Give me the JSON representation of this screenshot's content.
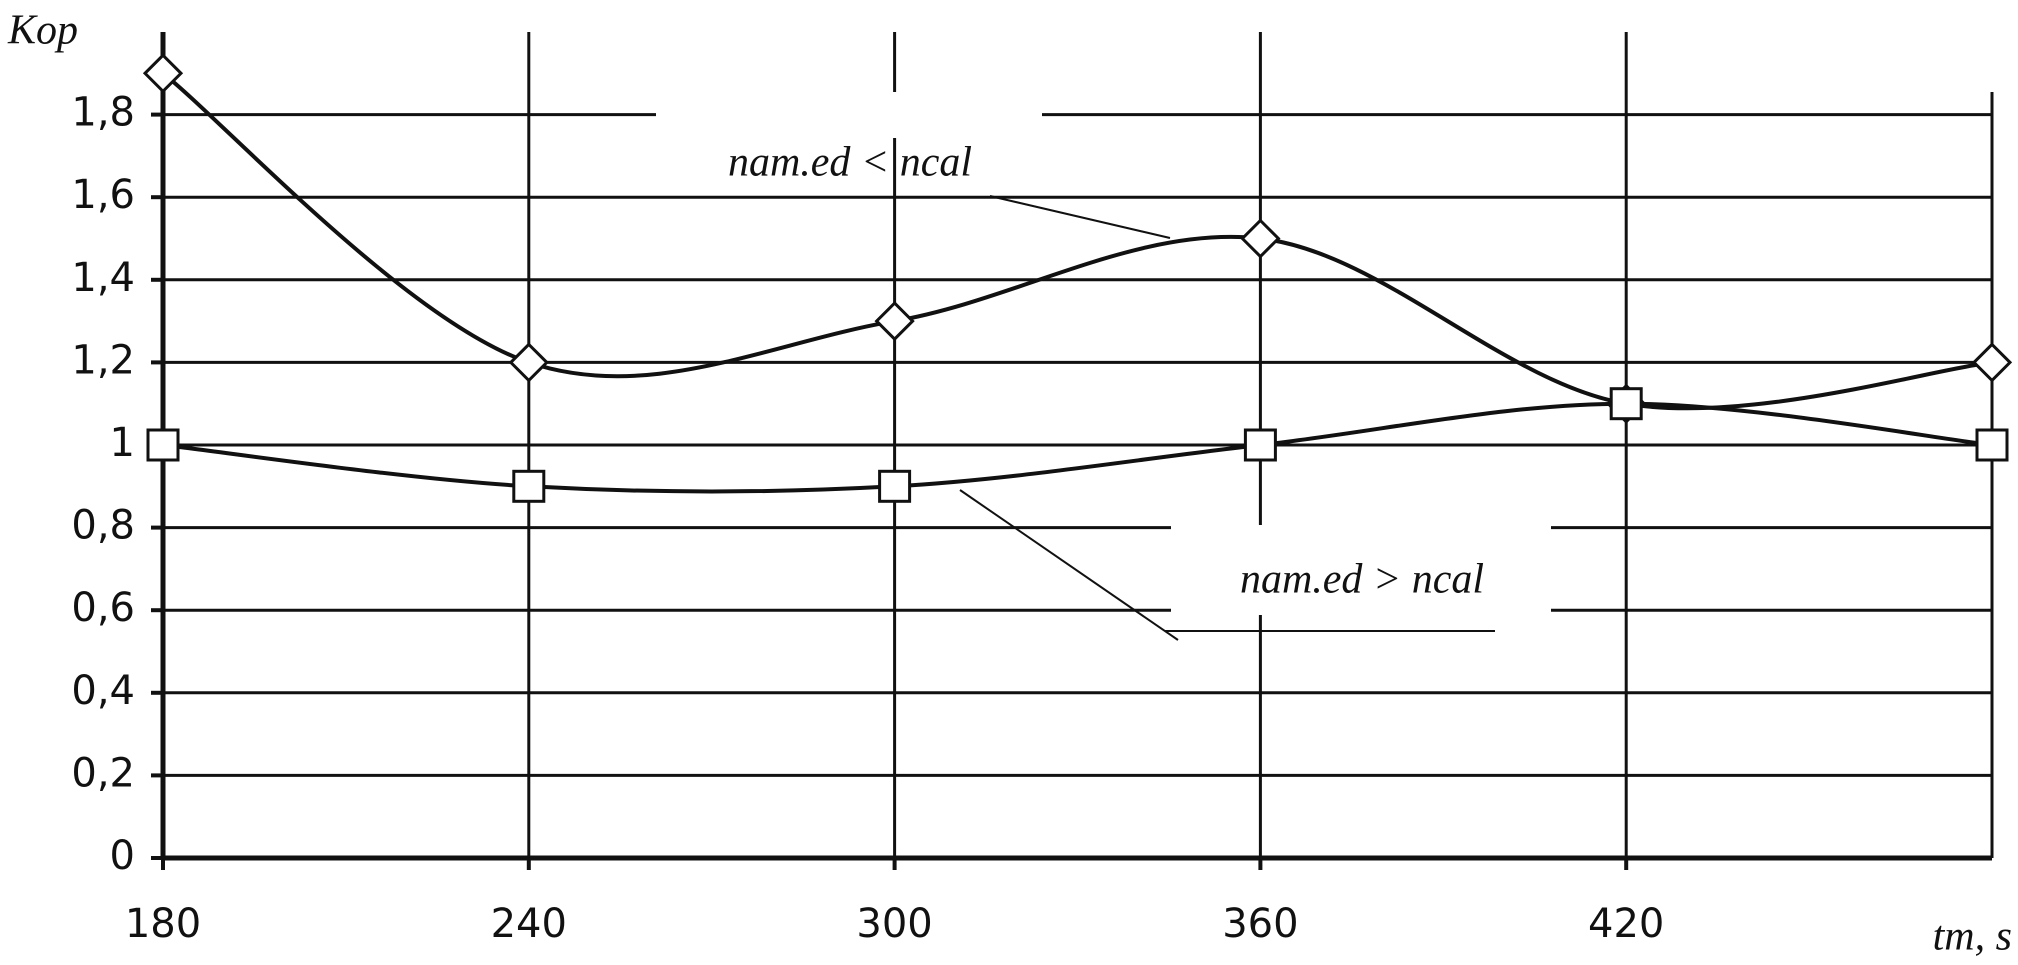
{
  "chart_data": {
    "type": "line",
    "y_label": "Kop",
    "x_label": "tm, s",
    "x": [
      180,
      240,
      300,
      360,
      420,
      480
    ],
    "series": [
      {
        "name": "nam.ed < ncal",
        "marker": "diamond",
        "color": "#111111",
        "values": [
          1.9,
          1.2,
          1.3,
          1.5,
          1.1,
          1.2
        ]
      },
      {
        "name": "nam.ed > ncal",
        "marker": "square",
        "color": "#111111",
        "values": [
          1.0,
          0.9,
          0.9,
          1.0,
          1.1,
          1.0
        ]
      }
    ],
    "xlim": [
      180,
      480
    ],
    "xticks": [
      180,
      240,
      300,
      360,
      420
    ],
    "ylim": [
      0,
      2
    ],
    "yticks": [
      0,
      {
        "value": 0.2,
        "label": "0,2"
      },
      {
        "value": 0.4,
        "label": "0,4"
      },
      {
        "value": 0.6,
        "label": "0,6"
      },
      {
        "value": 0.8,
        "label": "0,8"
      },
      1,
      {
        "value": 1.2,
        "label": "1,2"
      },
      {
        "value": 1.4,
        "label": "1,4"
      },
      {
        "value": 1.6,
        "label": "1,6"
      },
      {
        "value": 1.8,
        "label": "1,8"
      }
    ],
    "grid": true
  }
}
